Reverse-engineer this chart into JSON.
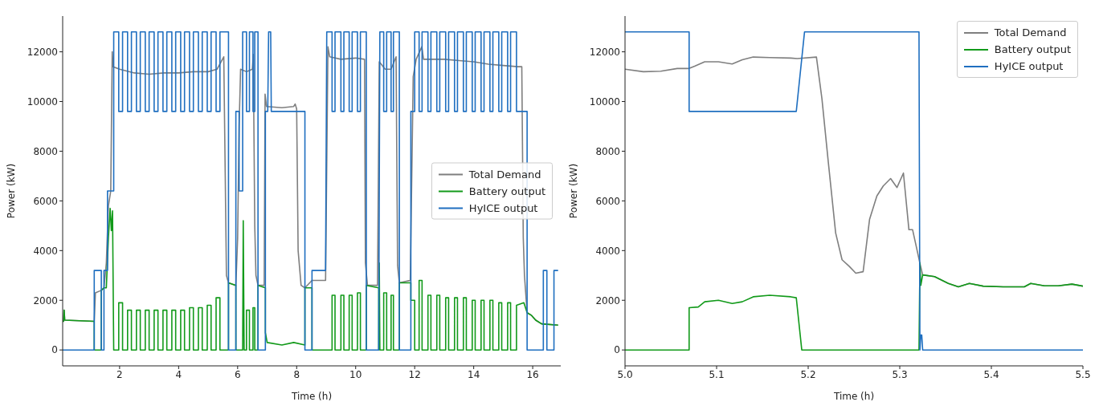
{
  "chart_data": [
    {
      "type": "line",
      "xlabel": "Time (h)",
      "ylabel": "Power (kW)",
      "xlim": [
        0.07,
        16.95
      ],
      "ylim": [
        -640,
        13440
      ],
      "xticks": [
        2,
        4,
        6,
        8,
        10,
        12,
        14,
        16
      ],
      "yticks": [
        0,
        2000,
        4000,
        6000,
        8000,
        10000,
        12000
      ],
      "legend": "right",
      "series": [
        {
          "name": "Total Demand",
          "color": "#7f7f7f",
          "x": [
            0.07,
            0.1,
            0.12,
            0.14,
            1.14,
            1.18,
            1.38,
            1.47,
            1.55,
            1.62,
            1.7,
            1.75,
            1.78,
            2.0,
            2.5,
            3.0,
            3.5,
            4.0,
            4.5,
            5.0,
            5.3,
            5.53,
            5.58,
            5.62,
            5.69,
            5.94,
            6.0,
            6.05,
            6.1,
            6.3,
            6.5,
            6.53,
            6.58,
            6.62,
            6.69,
            6.9,
            6.93,
            6.98,
            7.5,
            7.9,
            7.95,
            8.0,
            8.05,
            8.15,
            8.28,
            8.52,
            8.98,
            9.06,
            9.12,
            9.5,
            10.0,
            10.3,
            10.33,
            10.4,
            10.74,
            10.8,
            11.0,
            11.2,
            11.37,
            11.42,
            11.48,
            11.85,
            11.95,
            12.05,
            12.24,
            12.3,
            13.0,
            13.5,
            14.0,
            14.5,
            15.0,
            15.5,
            15.63,
            15.68,
            15.72,
            15.81,
            15.95,
            16.1,
            16.3,
            16.86
          ],
          "values": [
            1150,
            1150,
            1600,
            1200,
            1150,
            2300,
            2400,
            2500,
            3500,
            5800,
            6400,
            12000,
            11400,
            11300,
            11150,
            11100,
            11150,
            11150,
            11200,
            11200,
            11300,
            11800,
            7000,
            3000,
            2700,
            2600,
            4500,
            9000,
            11300,
            11200,
            11300,
            11900,
            5000,
            3000,
            2600,
            2600,
            10300,
            9800,
            9750,
            9800,
            9900,
            9700,
            4000,
            2600,
            2500,
            2800,
            2800,
            12200,
            11800,
            11700,
            11750,
            11700,
            3500,
            2600,
            2600,
            11600,
            11300,
            11300,
            11800,
            3400,
            2700,
            2800,
            11000,
            11700,
            12200,
            11700,
            11700,
            11650,
            11600,
            11500,
            11450,
            11400,
            11400,
            4500,
            3000,
            1500,
            1400,
            1200,
            1050,
            1000
          ]
        },
        {
          "name": "Battery output",
          "color": "#129a1a",
          "x": [
            0.07,
            0.1,
            0.12,
            0.14,
            1.14,
            1.14,
            1.38,
            1.38,
            1.47,
            1.55,
            1.62,
            1.68,
            1.72,
            1.76,
            1.8,
            1.97,
            1.97,
            2.1,
            2.1,
            2.27,
            2.27,
            2.4,
            2.4,
            2.57,
            2.57,
            2.7,
            2.7,
            2.87,
            2.87,
            3.0,
            3.0,
            3.17,
            3.17,
            3.3,
            3.3,
            3.47,
            3.47,
            3.6,
            3.6,
            3.77,
            3.77,
            3.9,
            3.9,
            4.07,
            4.07,
            4.2,
            4.2,
            4.37,
            4.37,
            4.5,
            4.5,
            4.67,
            4.67,
            4.8,
            4.8,
            4.97,
            4.97,
            5.1,
            5.1,
            5.27,
            5.27,
            5.4,
            5.4,
            5.69,
            5.69,
            5.94,
            5.94,
            6.17,
            6.19,
            6.22,
            6.3,
            6.3,
            6.4,
            6.4,
            6.52,
            6.52,
            6.58,
            6.58,
            6.69,
            6.69,
            6.94,
            6.94,
            7.0,
            7.5,
            7.9,
            8.28,
            8.28,
            8.52,
            8.52,
            9.2,
            9.2,
            9.3,
            9.3,
            9.5,
            9.5,
            9.6,
            9.6,
            9.78,
            9.78,
            9.88,
            9.88,
            10.06,
            10.06,
            10.16,
            10.16,
            10.36,
            10.36,
            10.78,
            10.78,
            10.8,
            10.82,
            10.95,
            10.95,
            11.05,
            11.05,
            11.2,
            11.2,
            11.28,
            11.28,
            11.48,
            11.48,
            11.87,
            11.87,
            12.0,
            12.0,
            12.15,
            12.15,
            12.25,
            12.25,
            12.45,
            12.45,
            12.55,
            12.55,
            12.75,
            12.75,
            12.85,
            12.85,
            13.05,
            13.05,
            13.15,
            13.15,
            13.35,
            13.35,
            13.45,
            13.45,
            13.65,
            13.65,
            13.75,
            13.75,
            13.95,
            13.95,
            14.05,
            14.05,
            14.25,
            14.25,
            14.35,
            14.35,
            14.55,
            14.55,
            14.65,
            14.65,
            14.85,
            14.85,
            14.95,
            14.95,
            15.15,
            15.15,
            15.25,
            15.25,
            15.45,
            15.45,
            15.7,
            15.81,
            15.95,
            16.1,
            16.3,
            16.86
          ],
          "values": [
            1150,
            1150,
            1600,
            1200,
            1150,
            0,
            0,
            2400,
            2500,
            2500,
            4500,
            5700,
            4800,
            5600,
            0,
            0,
            1900,
            1900,
            0,
            0,
            1600,
            1600,
            0,
            0,
            1600,
            1600,
            0,
            0,
            1600,
            1600,
            0,
            0,
            1600,
            1600,
            0,
            0,
            1600,
            1600,
            0,
            0,
            1600,
            1600,
            0,
            0,
            1600,
            1600,
            0,
            0,
            1700,
            1700,
            0,
            0,
            1700,
            1700,
            0,
            0,
            1800,
            1800,
            0,
            0,
            2100,
            2100,
            0,
            0,
            2700,
            2600,
            0,
            0,
            5200,
            0,
            0,
            1600,
            1600,
            0,
            0,
            1700,
            1700,
            0,
            0,
            2600,
            2500,
            700,
            300,
            200,
            300,
            200,
            2500,
            2500,
            0,
            0,
            2200,
            2200,
            0,
            0,
            2200,
            2200,
            0,
            0,
            2200,
            2200,
            0,
            0,
            2300,
            2300,
            0,
            0,
            2600,
            2500,
            0,
            3500,
            0,
            0,
            2300,
            2300,
            0,
            0,
            2200,
            2200,
            0,
            0,
            2700,
            2700,
            2000,
            2000,
            0,
            0,
            2800,
            2800,
            0,
            0,
            2200,
            2200,
            0,
            0,
            2200,
            2200,
            0,
            0,
            2100,
            2100,
            0,
            0,
            2100,
            2100,
            0,
            0,
            2100,
            2100,
            0,
            0,
            2000,
            2000,
            0,
            0,
            2000,
            2000,
            0,
            0,
            2000,
            2000,
            0,
            0,
            1900,
            1900,
            0,
            0,
            1900,
            1900,
            0,
            0,
            1800,
            1900,
            1500,
            1400,
            1200,
            1050,
            1000
          ]
        },
        {
          "name": "HyICE output",
          "color": "#1f6fc0",
          "x": [
            0.07,
            1.14,
            1.14,
            1.38,
            1.38,
            1.47,
            1.47,
            1.59,
            1.59,
            1.8,
            1.8,
            1.97,
            1.97,
            2.1,
            2.1,
            2.27,
            2.27,
            2.4,
            2.4,
            2.57,
            2.57,
            2.7,
            2.7,
            2.87,
            2.87,
            3.0,
            3.0,
            3.17,
            3.17,
            3.3,
            3.3,
            3.47,
            3.47,
            3.6,
            3.6,
            3.77,
            3.77,
            3.9,
            3.9,
            4.07,
            4.07,
            4.2,
            4.2,
            4.37,
            4.37,
            4.5,
            4.5,
            4.67,
            4.67,
            4.8,
            4.8,
            4.97,
            4.97,
            5.1,
            5.1,
            5.27,
            5.27,
            5.4,
            5.4,
            5.69,
            5.69,
            5.94,
            5.94,
            6.05,
            6.05,
            6.17,
            6.17,
            6.3,
            6.3,
            6.4,
            6.4,
            6.52,
            6.52,
            6.58,
            6.58,
            6.69,
            6.69,
            6.94,
            6.94,
            7.02,
            7.05,
            7.12,
            7.14,
            8.28,
            8.28,
            8.52,
            8.52,
            8.98,
            9.02,
            9.2,
            9.2,
            9.3,
            9.3,
            9.5,
            9.5,
            9.6,
            9.6,
            9.78,
            9.78,
            9.88,
            9.88,
            10.06,
            10.06,
            10.16,
            10.16,
            10.36,
            10.36,
            10.78,
            10.82,
            10.95,
            10.95,
            11.05,
            11.05,
            11.2,
            11.2,
            11.28,
            11.28,
            11.48,
            11.48,
            11.87,
            11.87,
            12.0,
            12.0,
            12.15,
            12.15,
            12.25,
            12.25,
            12.45,
            12.45,
            12.55,
            12.55,
            12.75,
            12.75,
            12.85,
            12.85,
            13.05,
            13.05,
            13.15,
            13.15,
            13.35,
            13.35,
            13.45,
            13.45,
            13.65,
            13.65,
            13.75,
            13.75,
            13.95,
            13.95,
            14.05,
            14.05,
            14.25,
            14.25,
            14.35,
            14.35,
            14.55,
            14.55,
            14.65,
            14.65,
            14.85,
            14.85,
            14.95,
            14.95,
            15.15,
            15.15,
            15.25,
            15.25,
            15.45,
            15.45,
            15.81,
            15.81,
            16.36,
            16.36,
            16.48,
            16.48,
            16.72,
            16.72,
            16.86
          ],
          "values": [
            0,
            0,
            3200,
            3200,
            0,
            0,
            3200,
            3200,
            6400,
            6400,
            12800,
            12800,
            9600,
            9600,
            12800,
            12800,
            9600,
            9600,
            12800,
            12800,
            9600,
            9600,
            12800,
            12800,
            9600,
            9600,
            12800,
            12800,
            9600,
            9600,
            12800,
            12800,
            9600,
            9600,
            12800,
            12800,
            9600,
            9600,
            12800,
            12800,
            9600,
            9600,
            12800,
            12800,
            9600,
            9600,
            12800,
            12800,
            9600,
            9600,
            12800,
            12800,
            9600,
            9600,
            12800,
            12800,
            9600,
            9600,
            12800,
            12800,
            0,
            0,
            9600,
            9600,
            6400,
            6400,
            12800,
            12800,
            9600,
            9600,
            12800,
            12800,
            9600,
            9600,
            12800,
            12800,
            0,
            0,
            9600,
            9600,
            12800,
            12800,
            9600,
            9600,
            0,
            0,
            3200,
            3200,
            12800,
            12800,
            9600,
            9600,
            12800,
            12800,
            9600,
            9600,
            12800,
            12800,
            9600,
            9600,
            12800,
            12800,
            9600,
            9600,
            12800,
            12800,
            0,
            0,
            12800,
            12800,
            9600,
            9600,
            12800,
            12800,
            9600,
            9600,
            12800,
            12800,
            0,
            0,
            9600,
            9600,
            12800,
            12800,
            9600,
            9600,
            12800,
            12800,
            9600,
            9600,
            12800,
            12800,
            9600,
            9600,
            12800,
            12800,
            9600,
            9600,
            12800,
            12800,
            9600,
            9600,
            12800,
            12800,
            9600,
            9600,
            12800,
            12800,
            9600,
            9600,
            12800,
            12800,
            9600,
            9600,
            12800,
            12800,
            9600,
            9600,
            12800,
            12800,
            9600,
            9600,
            12800,
            12800,
            9600,
            9600,
            12800,
            12800,
            9600,
            9600,
            0,
            0,
            3200,
            3200,
            0,
            0,
            3200,
            3200
          ]
        }
      ]
    },
    {
      "type": "line",
      "xlabel": "Time (h)",
      "ylabel": "Power (kW)",
      "xlim": [
        5.0,
        5.5
      ],
      "ylim": [
        -640,
        13440
      ],
      "xticks": [
        {
          "value": 5.0,
          "label": "5.0"
        },
        5.1,
        5.2,
        5.3,
        5.4,
        5.5
      ],
      "yticks": [
        0,
        2000,
        4000,
        6000,
        8000,
        10000,
        12000
      ],
      "legend": "top right",
      "series": [
        {
          "name": "Total Demand",
          "color": "#7f7f7f",
          "x": [
            5.0,
            5.02,
            5.039,
            5.057,
            5.07,
            5.076,
            5.087,
            5.102,
            5.117,
            5.128,
            5.14,
            5.158,
            5.181,
            5.188,
            5.209,
            5.215,
            5.222,
            5.23,
            5.237,
            5.245,
            5.252,
            5.26,
            5.267,
            5.275,
            5.282,
            5.29,
            5.297,
            5.304,
            5.31,
            5.314,
            5.318,
            5.322,
            5.325,
            5.338,
            5.353,
            5.364,
            5.376,
            5.391,
            5.413,
            5.436,
            5.443,
            5.458,
            5.473,
            5.488,
            5.5
          ],
          "values": [
            11300,
            11200,
            11220,
            11330,
            11330,
            11420,
            11600,
            11600,
            11510,
            11680,
            11790,
            11770,
            11750,
            11730,
            11790,
            10120,
            7550,
            4710,
            3630,
            3360,
            3090,
            3150,
            5250,
            6200,
            6600,
            6900,
            6540,
            7120,
            4840,
            4840,
            4170,
            3490,
            3020,
            2950,
            2680,
            2540,
            2680,
            2570,
            2540,
            2540,
            2680,
            2580,
            2580,
            2650,
            2570
          ]
        },
        {
          "name": "Battery output",
          "color": "#129a1a",
          "x": [
            5.0,
            5.07,
            5.07,
            5.08,
            5.087,
            5.102,
            5.117,
            5.128,
            5.14,
            5.158,
            5.181,
            5.187,
            5.193,
            5.321,
            5.322,
            5.323,
            5.325,
            5.338,
            5.353,
            5.364,
            5.376,
            5.391,
            5.413,
            5.436,
            5.443,
            5.458,
            5.473,
            5.488,
            5.5
          ],
          "values": [
            0,
            0,
            1700,
            1730,
            1940,
            2000,
            1870,
            1940,
            2140,
            2200,
            2140,
            2100,
            0,
            0,
            3500,
            2600,
            3020,
            2950,
            2680,
            2540,
            2680,
            2570,
            2540,
            2540,
            2680,
            2580,
            2580,
            2650,
            2570
          ]
        },
        {
          "name": "HyICE output",
          "color": "#1f6fc0",
          "x": [
            5.0,
            5.07,
            5.07,
            5.187,
            5.196,
            5.321,
            5.322,
            5.323,
            5.324,
            5.325,
            5.5
          ],
          "values": [
            12800,
            12800,
            9600,
            9600,
            12800,
            12800,
            0,
            600,
            600,
            0,
            0
          ]
        }
      ]
    }
  ]
}
